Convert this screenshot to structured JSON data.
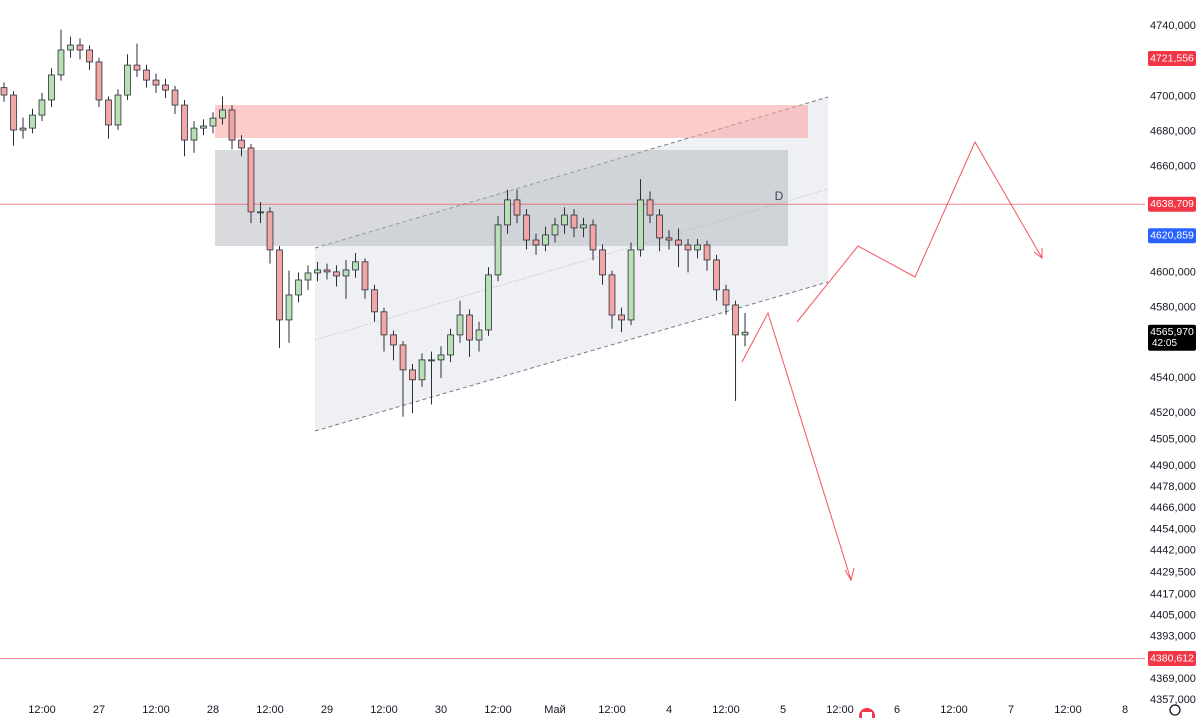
{
  "chart_data": {
    "type": "candlestick",
    "x": [
      4,
      6,
      8,
      10,
      12,
      14,
      16,
      18,
      20,
      22,
      24,
      26,
      28,
      30,
      32,
      34,
      36,
      38,
      40,
      42,
      44,
      46,
      48,
      50,
      52,
      54,
      56,
      58,
      60,
      62,
      64,
      66,
      68,
      70,
      72,
      74,
      76,
      78,
      80,
      82,
      84,
      86,
      88,
      90,
      92,
      94,
      96,
      98,
      100,
      102,
      104,
      106,
      108,
      110,
      112,
      114,
      116,
      118,
      120,
      122,
      124,
      126,
      128,
      130,
      132,
      134,
      136,
      138,
      140,
      142,
      144,
      146,
      148,
      150,
      152,
      154,
      156,
      158,
      160
    ],
    "open": [
      4705,
      4700.8,
      4680.9,
      4682,
      4689.4,
      4698,
      4712.2,
      4726.4,
      4729.2,
      4726.4,
      4719.6,
      4698,
      4683.8,
      4700.8,
      4717.8,
      4715,
      4709.3,
      4706.5,
      4703.6,
      4695.1,
      4675.2,
      4682,
      4683.2,
      4687.7,
      4692.3,
      4675.2,
      4670.7,
      4634.4,
      4634.4,
      4612.8,
      4573,
      4587.2,
      4595.7,
      4599.7,
      4601.4,
      4600.3,
      4598,
      4601.4,
      4606,
      4590.1,
      4577.6,
      4564.5,
      4558.8,
      4544.6,
      4539,
      4550.3,
      4550.3,
      4553.1,
      4564.5,
      4575.8,
      4561.6,
      4567.3,
      4598.6,
      4627,
      4641.2,
      4632.6,
      4618.4,
      4615.6,
      4621.3,
      4627,
      4632.6,
      4625.3,
      4627,
      4612.8,
      4598.6,
      4575.8,
      4573,
      4612.8,
      4641.2,
      4632.6,
      4619.6,
      4618.4,
      4615.6,
      4612.8,
      4615.6,
      4607.1,
      4590.1,
      4581.5,
      4564.5
    ],
    "high": [
      4708,
      4703,
      4688,
      4693,
      4702,
      4716,
      4738,
      4734,
      4733,
      4729,
      4722,
      4700,
      4704,
      4724,
      4730,
      4718,
      4713,
      4710,
      4706,
      4698,
      4686,
      4687,
      4691,
      4700,
      4695,
      4678,
      4673,
      4640,
      4637,
      4615,
      4601,
      4600,
      4604,
      4606,
      4605,
      4604,
      4607,
      4611,
      4608,
      4593,
      4580,
      4567,
      4561,
      4548,
      4554,
      4555,
      4558,
      4568,
      4584,
      4579,
      4572,
      4603,
      4632,
      4647,
      4647,
      4636,
      4622,
      4626,
      4631,
      4637,
      4636,
      4631,
      4630,
      4616,
      4601,
      4580,
      4617,
      4653,
      4646,
      4636,
      4624,
      4625,
      4619,
      4619,
      4618,
      4610,
      4593,
      4584,
      4577
    ],
    "low": [
      4697,
      4672,
      4676,
      4679,
      4686,
      4694,
      4709,
      4722,
      4721,
      4715,
      4694,
      4676,
      4681,
      4698,
      4711,
      4705,
      4702,
      4699,
      4690,
      4666,
      4668,
      4678,
      4679,
      4684,
      4670,
      4666,
      4628,
      4628,
      4605,
      4557,
      4560,
      4583,
      4590,
      4595,
      4596,
      4592,
      4585,
      4597,
      4585,
      4572,
      4555,
      4550,
      4518,
      4520,
      4535,
      4525,
      4540,
      4549,
      4560,
      4552,
      4555,
      4564,
      4595,
      4622,
      4628,
      4613,
      4610,
      4612,
      4617,
      4622,
      4620,
      4620,
      4607,
      4593,
      4568,
      4566,
      4570,
      4609,
      4628,
      4612,
      4613,
      4603,
      4600,
      4608,
      4601,
      4584,
      4576,
      4527,
      4558
    ],
    "close": [
      4700.8,
      4680.9,
      4682,
      4689.4,
      4698,
      4712.2,
      4726.4,
      4729.2,
      4726.4,
      4719.6,
      4698,
      4683.8,
      4700.8,
      4717.8,
      4715,
      4709.3,
      4706.5,
      4703.6,
      4695.1,
      4675.2,
      4682,
      4683.2,
      4687.7,
      4692.3,
      4675.2,
      4670.7,
      4634.4,
      4634.4,
      4612.8,
      4573,
      4587.2,
      4595.7,
      4599.7,
      4601.4,
      4600.3,
      4598,
      4601.4,
      4606,
      4590.1,
      4577.6,
      4564.5,
      4558.8,
      4544.6,
      4539,
      4550.3,
      4550.3,
      4553.1,
      4564.5,
      4575.8,
      4561.6,
      4567.3,
      4598.6,
      4627,
      4641.2,
      4632.6,
      4618.4,
      4615.6,
      4621.3,
      4627,
      4632.6,
      4625.3,
      4627,
      4612.8,
      4598.6,
      4575.8,
      4573,
      4612.8,
      4641.2,
      4632.6,
      4619.6,
      4618.4,
      4615.6,
      4612.8,
      4615.6,
      4607.1,
      4590.1,
      4581.5,
      4564.5,
      4566
    ],
    "up_color": "#b9dfb4",
    "down_color": "#f2a7a7",
    "wick_color": "#2a2e39",
    "xlim": [
      3.16,
      244.2
    ],
    "ylim": [
      4346.8,
      4754.8
    ],
    "xticks": [
      {
        "value": 12,
        "label": "12:00"
      },
      {
        "value": 24,
        "label": "27"
      },
      {
        "value": 36,
        "label": "12:00"
      },
      {
        "value": 48,
        "label": "28"
      },
      {
        "value": 60,
        "label": "12:00"
      },
      {
        "value": 72,
        "label": "29"
      },
      {
        "value": 84,
        "label": "12:00"
      },
      {
        "value": 96,
        "label": "30"
      },
      {
        "value": 108,
        "label": "12:00"
      },
      {
        "value": 120,
        "label": "Май"
      },
      {
        "value": 132,
        "label": "12:00"
      },
      {
        "value": 144,
        "label": "4"
      },
      {
        "value": 156,
        "label": "12:00"
      },
      {
        "value": 168,
        "label": "5"
      },
      {
        "value": 180,
        "label": "12:00"
      },
      {
        "value": 192,
        "label": "6"
      },
      {
        "value": 204,
        "label": "12:00"
      },
      {
        "value": 216,
        "label": "7"
      },
      {
        "value": 228,
        "label": "12:00"
      },
      {
        "value": 240,
        "label": "8"
      }
    ],
    "yticks": [
      {
        "value": 4740,
        "label": "4740,000"
      },
      {
        "value": 4700,
        "label": "4700,000"
      },
      {
        "value": 4680,
        "label": "4680,000"
      },
      {
        "value": 4660,
        "label": "4660,000"
      },
      {
        "value": 4600,
        "label": "4600,000"
      },
      {
        "value": 4580,
        "label": "4580,000"
      },
      {
        "value": 4540,
        "label": "4540,000"
      },
      {
        "value": 4520,
        "label": "4520,000"
      },
      {
        "value": 4505,
        "label": "4505,000"
      },
      {
        "value": 4490,
        "label": "4490,000"
      },
      {
        "value": 4478,
        "label": "4478,000"
      },
      {
        "value": 4466,
        "label": "4466,000"
      },
      {
        "value": 4454,
        "label": "4454,000"
      },
      {
        "value": 4442,
        "label": "4442,000"
      },
      {
        "value": 4429.5,
        "label": "4429,500"
      },
      {
        "value": 4417,
        "label": "4417,000"
      },
      {
        "value": 4405,
        "label": "4405,000"
      },
      {
        "value": 4393,
        "label": "4393,000"
      },
      {
        "value": 4369,
        "label": "4369,000"
      },
      {
        "value": 4357,
        "label": "4357,000"
      }
    ],
    "price_labels": [
      {
        "value": 4721.556,
        "label": "4721,556",
        "color": "#f23645",
        "line": false
      },
      {
        "value": 4638.709,
        "label": "4638,709",
        "color": "#f23645",
        "line": true
      },
      {
        "value": 4620.859,
        "label": "4620,859",
        "color": "#2962ff",
        "line": false
      },
      {
        "value": 4565.97,
        "label": "4565,970",
        "timer": "42:05",
        "color": "#000000",
        "line": false
      },
      {
        "value": 4380.612,
        "label": "4380,612",
        "color": "#f23645",
        "line": true
      }
    ],
    "annotations": [
      "D"
    ]
  }
}
